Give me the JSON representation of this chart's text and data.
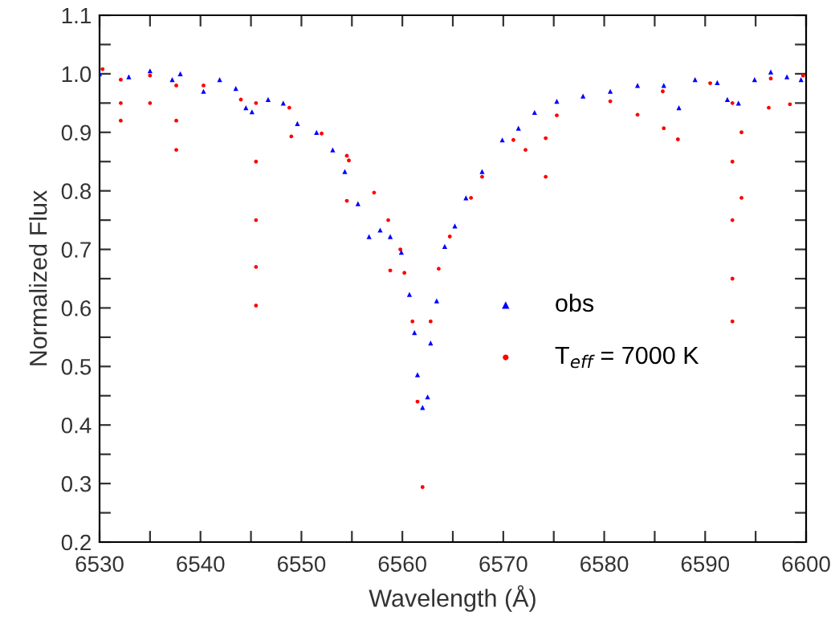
{
  "chart_data": {
    "type": "scatter",
    "xlabel": "Wavelength (Å)",
    "ylabel": "Normalized Flux",
    "xlim": [
      6530,
      6600
    ],
    "ylim": [
      0.2,
      1.1
    ],
    "xticks": [
      6530,
      {
        "value": 6535,
        "label": null
      },
      6540,
      {
        "value": 6545,
        "label": null
      },
      6550,
      {
        "value": 6555,
        "label": null
      },
      6560,
      {
        "value": 6565,
        "label": null
      },
      6570,
      {
        "value": 6575,
        "label": null
      },
      6580,
      {
        "value": 6585,
        "label": null
      },
      6590,
      {
        "value": 6595,
        "label": null
      },
      6600
    ],
    "yticks": [
      0.2,
      {
        "value": 0.25,
        "label": null
      },
      0.3,
      {
        "value": 0.35,
        "label": null
      },
      0.4,
      {
        "value": 0.45,
        "label": null
      },
      0.5,
      {
        "value": 0.55,
        "label": null
      },
      0.6,
      {
        "value": 0.65,
        "label": null
      },
      0.7,
      {
        "value": 0.75,
        "label": null
      },
      0.8,
      {
        "value": 0.85,
        "label": null
      },
      0.9,
      {
        "value": 0.95,
        "label": null
      },
      {
        "value": 1.0,
        "label": "1.0"
      },
      {
        "value": 1.05,
        "label": null
      },
      1.1
    ],
    "grid": false,
    "legend": "center right",
    "series": [
      {
        "name": "obs",
        "marker": "triangle",
        "color": "#0000ff",
        "x": [
          6530,
          6532.9,
          6535,
          6537.2,
          6538,
          6540.3,
          6541.9,
          6543.5,
          6544.5,
          6545.1,
          6546.7,
          6548.2,
          6549.6,
          6551.5,
          6553.1,
          6554.3,
          6555.6,
          6556.7,
          6557.8,
          6558.8,
          6559.9,
          6560.7,
          6561.2,
          6561.5,
          6562,
          6562.5,
          6562.8,
          6563.4,
          6564.2,
          6565.2,
          6566.3,
          6567.9,
          6569.9,
          6571.5,
          6573.1,
          6575.3,
          6577.9,
          6580.6,
          6583.3,
          6585.9,
          6587.4,
          6589,
          6591.2,
          6592.2,
          6593.3,
          6594.9,
          6596.5,
          6598.1,
          6599.5
        ],
        "values": [
          1.0,
          0.995,
          1.005,
          0.99,
          1.0,
          0.97,
          0.99,
          0.975,
          0.942,
          0.935,
          0.956,
          0.95,
          0.915,
          0.9,
          0.87,
          0.833,
          0.778,
          0.722,
          0.733,
          0.722,
          0.695,
          0.623,
          0.558,
          0.486,
          0.43,
          0.448,
          0.54,
          0.612,
          0.705,
          0.74,
          0.788,
          0.833,
          0.887,
          0.907,
          0.934,
          0.953,
          0.962,
          0.97,
          0.98,
          0.98,
          0.942,
          0.99,
          0.985,
          0.956,
          0.95,
          0.99,
          1.003,
          0.995,
          0.99
        ]
      },
      {
        "name": "T$_{eff}$ = 7000 K",
        "marker": "circle",
        "color": "#ff0000",
        "x": [
          6530.3,
          6532.1,
          6532.1,
          6532.1,
          6535,
          6535,
          6537.6,
          6537.6,
          6537.6,
          6540.3,
          6544,
          6545.5,
          6545.5,
          6545.5,
          6545.5,
          6545.5,
          6548.8,
          6549,
          6552,
          6554.5,
          6554.5,
          6554.7,
          6557.2,
          6558.6,
          6558.8,
          6559.8,
          6560.2,
          6561,
          6561.5,
          6562,
          6562.8,
          6563.6,
          6564.7,
          6566.8,
          6567.9,
          6571,
          6572.2,
          6574.2,
          6574.2,
          6575.3,
          6580.6,
          6583.3,
          6585.8,
          6585.9,
          6587.3,
          6590.5,
          6592.7,
          6592.7,
          6592.7,
          6592.7,
          6592.7,
          6593.6,
          6593.6,
          6596.3,
          6596.5,
          6598.4,
          6599.7
        ],
        "values": [
          1.008,
          0.99,
          0.95,
          0.92,
          0.997,
          0.95,
          0.98,
          0.92,
          0.87,
          0.98,
          0.956,
          0.95,
          0.85,
          0.75,
          0.67,
          0.604,
          0.942,
          0.893,
          0.898,
          0.86,
          0.783,
          0.852,
          0.797,
          0.75,
          0.664,
          0.7,
          0.66,
          0.577,
          0.44,
          0.294,
          0.577,
          0.667,
          0.722,
          0.788,
          0.824,
          0.887,
          0.87,
          0.89,
          0.824,
          0.929,
          0.953,
          0.93,
          0.97,
          0.907,
          0.888,
          0.984,
          0.95,
          0.85,
          0.75,
          0.65,
          0.577,
          0.9,
          0.788,
          0.942,
          0.992,
          0.948,
          0.997
        ]
      }
    ]
  }
}
